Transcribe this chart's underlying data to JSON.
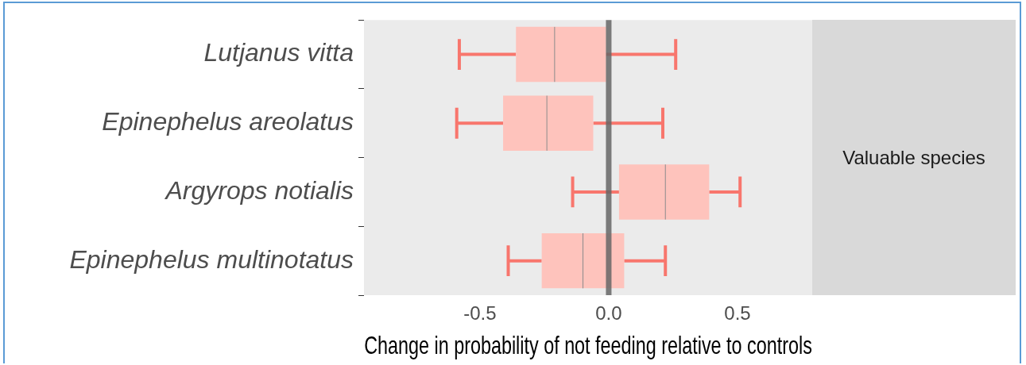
{
  "chart_data": {
    "type": "box",
    "orientation": "horizontal",
    "xlabel": "Change in probability of not feeding relative to controls",
    "categories": [
      "Lutjanus vitta",
      "Epinephelus areolatus",
      "Argyrops notialis",
      "Epinephelus multinotatus"
    ],
    "boxes": [
      {
        "low": -0.58,
        "q1": -0.36,
        "median": -0.21,
        "q3": -0.01,
        "high": 0.26
      },
      {
        "low": -0.59,
        "q1": -0.41,
        "median": -0.24,
        "q3": -0.06,
        "high": 0.21
      },
      {
        "low": -0.14,
        "q1": 0.04,
        "median": 0.22,
        "q3": 0.39,
        "high": 0.51
      },
      {
        "low": -0.39,
        "q1": -0.26,
        "median": -0.1,
        "q3": 0.06,
        "high": 0.22
      }
    ],
    "colors": [
      "#fec3bc",
      "#fec3bc",
      "#fec3bc",
      "#fec3bc"
    ],
    "xlim": [
      -0.95,
      0.79
    ],
    "xticks": [
      -0.5,
      {
        "value": 0,
        "label": "0.0"
      },
      0.5
    ],
    "ref_lines": [
      {
        "axis": "x",
        "value": 0,
        "color": "#666666"
      }
    ],
    "annotations": [
      "Valuable species"
    ],
    "grid": false,
    "legend": false
  }
}
